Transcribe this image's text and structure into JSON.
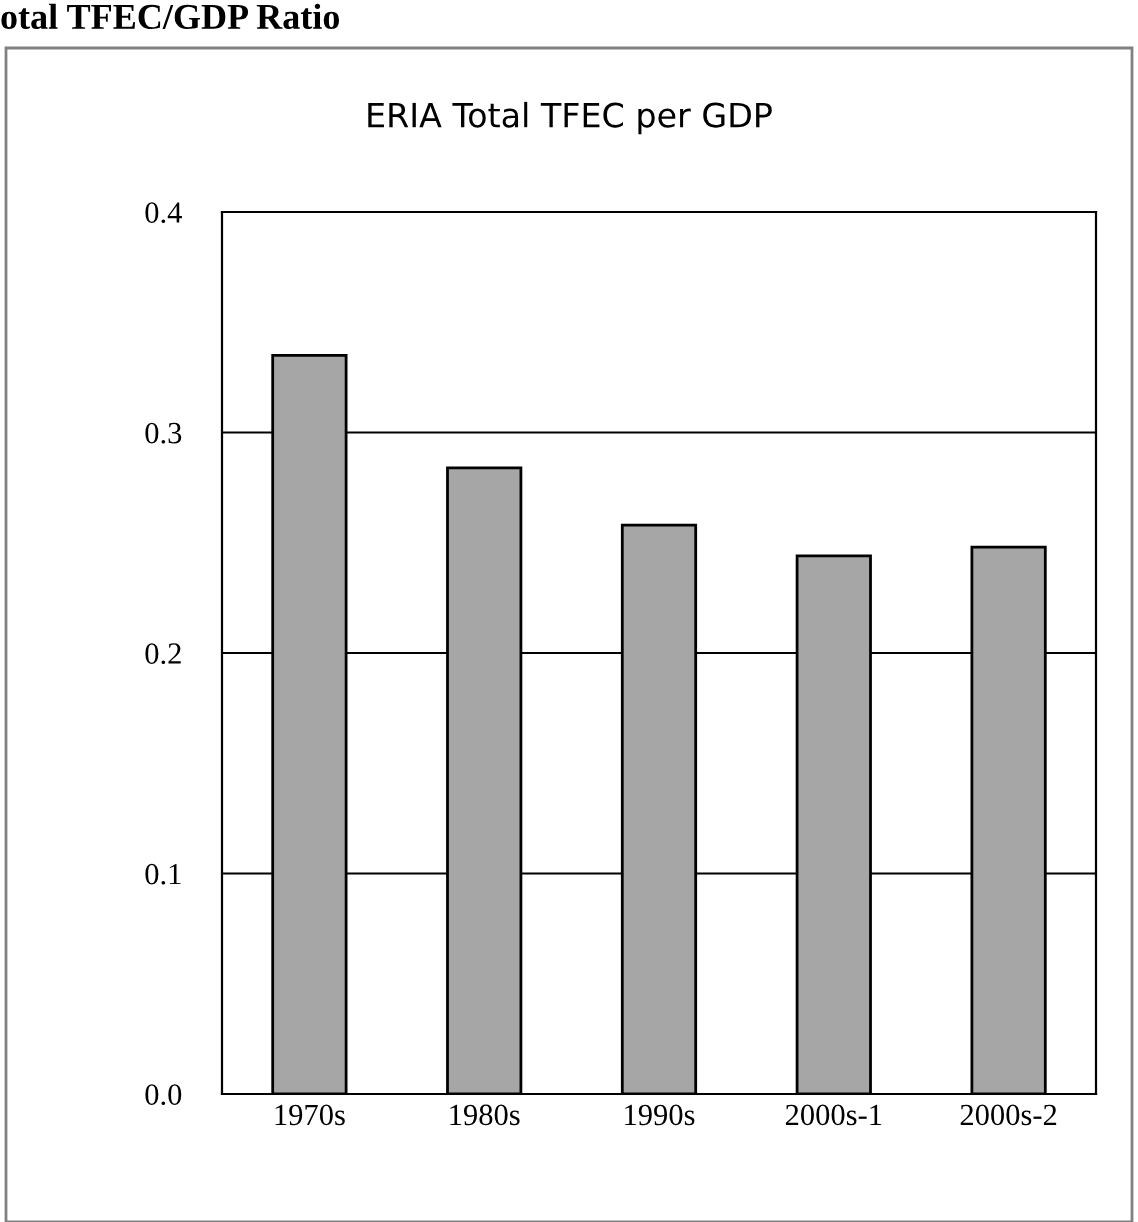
{
  "chart_data": {
    "type": "bar",
    "title": "otal TFEC/GDP Ratio",
    "subtitle": "ERIA Total TFEC per GDP",
    "categories": [
      "1970s",
      "1980s",
      "1990s",
      "2000s-1",
      "2000s-2"
    ],
    "values": [
      0.335,
      0.284,
      0.258,
      0.244,
      0.248
    ],
    "color": "#a6a6a6",
    "ylim": [
      0,
      0.4
    ],
    "yticks": [
      {
        "value": 0,
        "label": "0.0"
      },
      0.1,
      0.2,
      0.3,
      0.4
    ],
    "grid": "y"
  }
}
